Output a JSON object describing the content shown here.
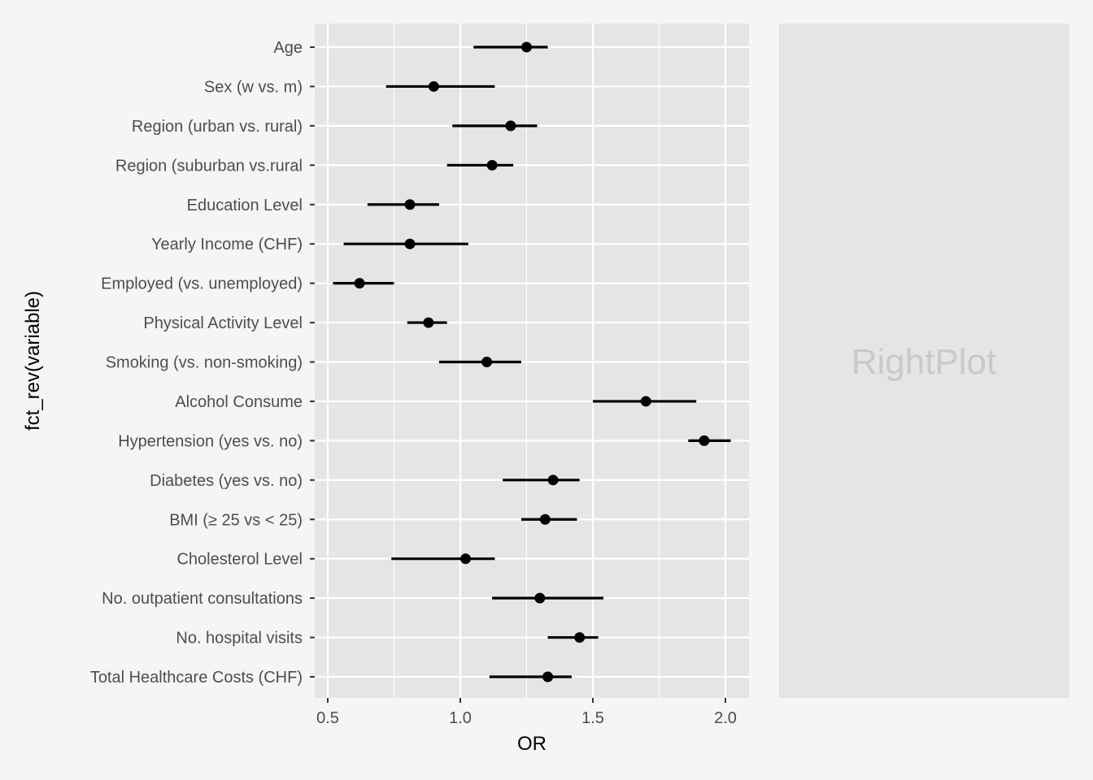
{
  "chart_data": {
    "type": "forest",
    "xlabel": "OR",
    "ylabel": "fct_rev(variable)",
    "xlim": [
      0.45,
      2.09
    ],
    "x_ticks": [
      "0.5",
      "1.0",
      "1.5",
      "2.0"
    ],
    "x_tick_values": [
      0.5,
      1.0,
      1.5,
      2.0
    ],
    "grid": true,
    "categories": [
      "Age",
      "Sex (w vs. m)",
      "Region (urban vs. rural)",
      "Region (suburban vs.rural",
      "Education Level",
      "Yearly Income (CHF)",
      "Employed (vs. unemployed)",
      "Physical Activity Level",
      "Smoking (vs. non-smoking)",
      "Alcohol Consume",
      "Hypertension (yes vs. no)",
      "Diabetes (yes vs. no)",
      "BMI (≥ 25 vs < 25)",
      "Cholesterol Level",
      "No. outpatient consultations",
      "No. hospital visits",
      "Total Healthcare Costs (CHF)"
    ],
    "estimates": [
      1.25,
      0.9,
      1.19,
      1.12,
      0.81,
      0.81,
      0.62,
      0.88,
      1.1,
      1.7,
      1.92,
      1.35,
      1.32,
      1.02,
      1.3,
      1.45,
      1.33
    ],
    "ci_lower": [
      1.05,
      0.72,
      0.97,
      0.95,
      0.65,
      0.56,
      0.52,
      0.8,
      0.92,
      1.5,
      1.86,
      1.16,
      1.23,
      0.74,
      1.12,
      1.33,
      1.11
    ],
    "ci_upper": [
      1.33,
      1.13,
      1.29,
      1.2,
      0.92,
      1.03,
      0.75,
      0.95,
      1.23,
      1.89,
      2.02,
      1.45,
      1.44,
      1.13,
      1.54,
      1.52,
      1.42
    ]
  },
  "right_panel": {
    "label": "RightPlot"
  },
  "colors": {
    "panel_bg": "#e5e5e5",
    "grid": "#ffffff",
    "point": "#000000",
    "tick": "#333333"
  }
}
